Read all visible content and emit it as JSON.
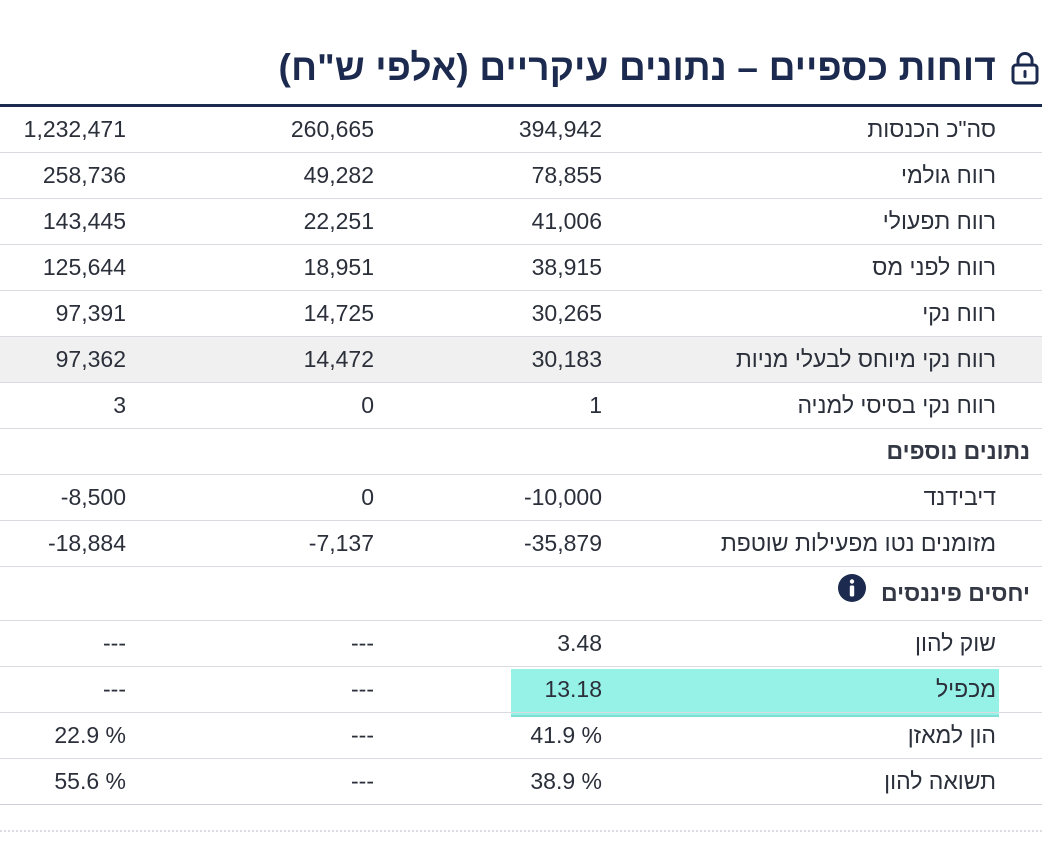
{
  "header": {
    "title": "דוחות כספיים – נתונים עיקריים (אלפי ש\"ח)",
    "icon": "lock-icon"
  },
  "rows_main": [
    {
      "label": "סה\"כ הכנסות",
      "c1": "394,942",
      "c2": "260,665",
      "c3": "1,232,471"
    },
    {
      "label": "רווח גולמי",
      "c1": "78,855",
      "c2": "49,282",
      "c3": "258,736"
    },
    {
      "label": "רווח תפעולי",
      "c1": "41,006",
      "c2": "22,251",
      "c3": "143,445"
    },
    {
      "label": "רווח לפני מס",
      "c1": "38,915",
      "c2": "18,951",
      "c3": "125,644"
    },
    {
      "label": "רווח נקי",
      "c1": "30,265",
      "c2": "14,725",
      "c3": "97,391"
    },
    {
      "label": "רווח נקי מיוחס לבעלי מניות",
      "c1": "30,183",
      "c2": "14,472",
      "c3": "97,362"
    },
    {
      "label": "רווח נקי בסיסי למניה",
      "c1": "1",
      "c2": "0",
      "c3": "3"
    }
  ],
  "additional": {
    "title": "נתונים נוספים",
    "rows": [
      {
        "label": "דיבידנד",
        "c1": "-10,000",
        "c2": "0",
        "c3": "-8,500"
      },
      {
        "label": "מזומנים נטו מפעילות שוטפת",
        "c1": "-35,879",
        "c2": "-7,137",
        "c3": "-18,884"
      }
    ]
  },
  "ratios": {
    "title": "יחסים פיננסים",
    "info_icon": "info-icon",
    "rows": [
      {
        "label": "שוק להון",
        "c1": "3.48",
        "c2": "---",
        "c3": "---"
      },
      {
        "label": "מכפיל",
        "c1": "13.18",
        "c2": "---",
        "c3": "---"
      },
      {
        "label": "הון למאזן",
        "c1": "41.9 %",
        "c2": "---",
        "c3": "22.9 %"
      },
      {
        "label": "תשואה להון",
        "c1": "38.9 %",
        "c2": "---",
        "c3": "55.6 %"
      }
    ]
  },
  "colors": {
    "title": "#1b2a4e",
    "highlight": "#6eebdc",
    "shaded_row": "#f0f0f0"
  }
}
